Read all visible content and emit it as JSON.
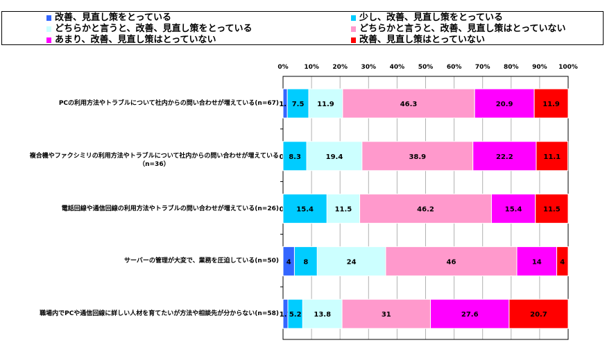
{
  "chart_data": {
    "type": "bar",
    "orientation": "horizontal",
    "stacked": "percent",
    "xlim": [
      0,
      100
    ],
    "xticks": [
      "0%",
      "10%",
      "20%",
      "30%",
      "40%",
      "50%",
      "60%",
      "70%",
      "80%",
      "90%",
      "100%"
    ],
    "legend_position": "top",
    "categories": [
      "PCの利用方法やトラブルについて社内からの問い合わせが増えている(n=67)",
      "複合機やファクシミリの利用方法やトラブルについて社内からの問い合わせが増えている\n（n=36）",
      "電話回線や通信回線の利用方法やトラブルの問い合わせが増えている(n=26)",
      "サーバーの管理が大変で、業務を圧迫している(n=50)",
      "職場内でPCや通信回線に詳しい人材を育てたいが方法や相談先が分からない(n=58)"
    ],
    "series": [
      {
        "name": "改善、見直し策をとっている",
        "color": "#3366ff",
        "values": [
          1.5,
          0,
          0,
          4,
          1.7
        ]
      },
      {
        "name": "少し、改善、見直し策をとっている",
        "color": "#00ccff",
        "values": [
          7.5,
          8.3,
          15.4,
          8,
          5.2
        ]
      },
      {
        "name": "どちらかと言うと、改善、見直し策をとっている",
        "color": "#ccffff",
        "values": [
          11.9,
          19.4,
          11.5,
          24,
          13.8
        ]
      },
      {
        "name": "どちらかと言うと、改善、見直し策はとっていない",
        "color": "#ff99cc",
        "values": [
          46.3,
          38.9,
          46.2,
          46,
          31
        ]
      },
      {
        "name": "あまり、改善、見直し策はとっていない",
        "color": "#ff00ff",
        "values": [
          20.9,
          22.2,
          15.4,
          14,
          27.6
        ]
      },
      {
        "name": "改善、見直し策はとっていない",
        "color": "#ff0000",
        "values": [
          11.9,
          11.1,
          11.5,
          4,
          20.7
        ]
      }
    ]
  }
}
